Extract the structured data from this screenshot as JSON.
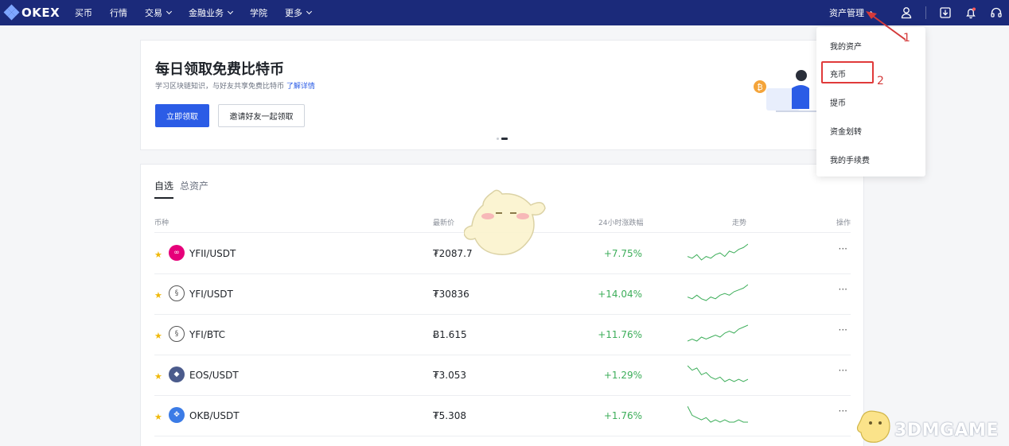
{
  "nav": {
    "logo_text": "OKEX",
    "items": [
      {
        "label": "买币",
        "caret": false
      },
      {
        "label": "行情",
        "caret": false
      },
      {
        "label": "交易",
        "caret": true
      },
      {
        "label": "金融业务",
        "caret": true
      },
      {
        "label": "学院",
        "caret": false
      },
      {
        "label": "更多",
        "caret": true
      }
    ],
    "asset_menu_label": "资产管理",
    "icons": [
      "user-icon",
      "download-icon",
      "bell-icon",
      "headset-icon"
    ]
  },
  "banner": {
    "title": "每日领取免费比特币",
    "subtitle": "学习区块链知识，与好友共享免费比特币",
    "subtitle_link": "了解详情",
    "primary_button": "立即领取",
    "secondary_button": "邀请好友一起领取",
    "slide_count": 2,
    "active_slide": 2
  },
  "tabs": [
    {
      "label": "自选",
      "active": true
    },
    {
      "label": "总资产",
      "active": false
    }
  ],
  "table": {
    "headers": {
      "pair": "币种",
      "price": "最新价",
      "change": "24小时涨跌幅",
      "trend": "走势",
      "action": "操作"
    },
    "rows": [
      {
        "pair": "YFII/USDT",
        "price": "₮2087.7",
        "change": "+7.75%",
        "icon": "yfii-icon",
        "icon_color": "#e6007a",
        "trend": [
          5,
          4,
          6,
          3,
          5,
          4,
          6,
          7,
          5,
          8,
          7,
          9,
          10,
          12
        ]
      },
      {
        "pair": "YFI/USDT",
        "price": "₮30836",
        "change": "+14.04%",
        "icon": "yfi-icon",
        "icon_color": "#ffffff",
        "trend": [
          6,
          5,
          7,
          5,
          4,
          6,
          5,
          7,
          8,
          7,
          9,
          10,
          11,
          13
        ]
      },
      {
        "pair": "YFI/BTC",
        "price": "Ƀ1.615",
        "change": "+11.76%",
        "icon": "yfi-icon",
        "icon_color": "#ffffff",
        "trend": [
          4,
          5,
          4,
          6,
          5,
          6,
          7,
          6,
          8,
          9,
          8,
          10,
          11,
          12
        ]
      },
      {
        "pair": "EOS/USDT",
        "price": "₮3.053",
        "change": "+1.29%",
        "icon": "eos-icon",
        "icon_color": "#4b5b8c",
        "trend": [
          12,
          10,
          11,
          8,
          9,
          7,
          6,
          7,
          5,
          6,
          5,
          6,
          5,
          6
        ]
      },
      {
        "pair": "OKB/USDT",
        "price": "₮5.308",
        "change": "+1.76%",
        "icon": "okb-icon",
        "icon_color": "#3b7be6",
        "trend": [
          12,
          8,
          7,
          6,
          7,
          5,
          6,
          5,
          6,
          5,
          5,
          6,
          5,
          5
        ]
      }
    ],
    "more_label": "···"
  },
  "dropdown": {
    "items": [
      "我的资产",
      "充币",
      "提币",
      "资金划转",
      "我的手续费"
    ],
    "highlighted_index": 1
  },
  "annotations": [
    "1",
    "2"
  ],
  "watermark": "3DMGAME",
  "colors": {
    "topbar": "#1b2a7a",
    "accent": "#2b5ce6",
    "positive": "#3dae5a",
    "highlight": "#e03a3a",
    "star": "#f0b90b"
  }
}
